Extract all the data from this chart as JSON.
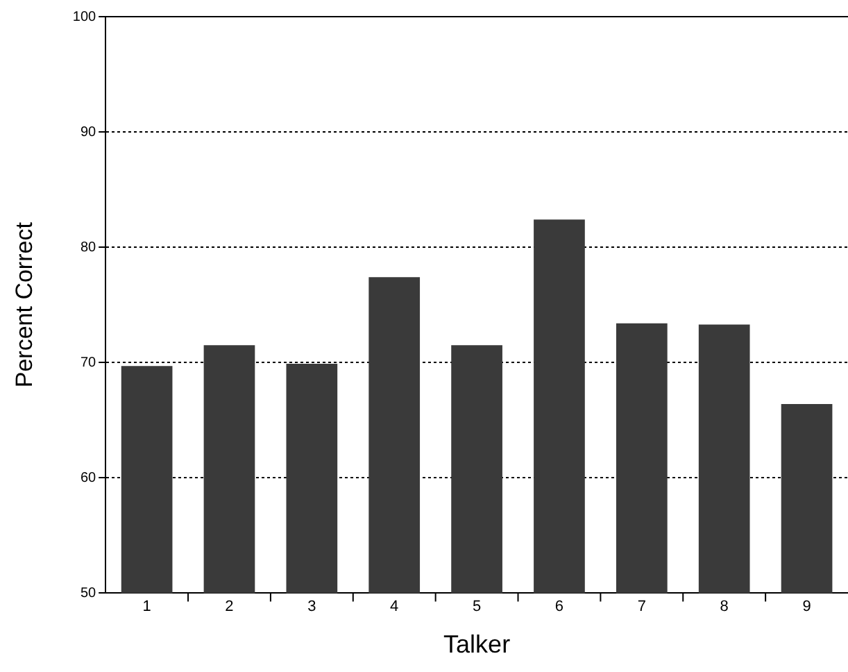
{
  "chart_data": {
    "type": "bar",
    "xlabel": "Talker",
    "ylabel": "Percent Correct",
    "categories": [
      "1",
      "2",
      "3",
      "4",
      "5",
      "6",
      "7",
      "8",
      "9"
    ],
    "values": [
      69.7,
      71.5,
      69.9,
      77.4,
      71.5,
      82.4,
      73.4,
      73.3,
      66.4
    ],
    "color": "#3a3a3a",
    "ylim": [
      50,
      100
    ],
    "yticks": [
      50,
      60,
      70,
      80,
      90,
      100
    ],
    "grid": "y",
    "legend": false
  }
}
